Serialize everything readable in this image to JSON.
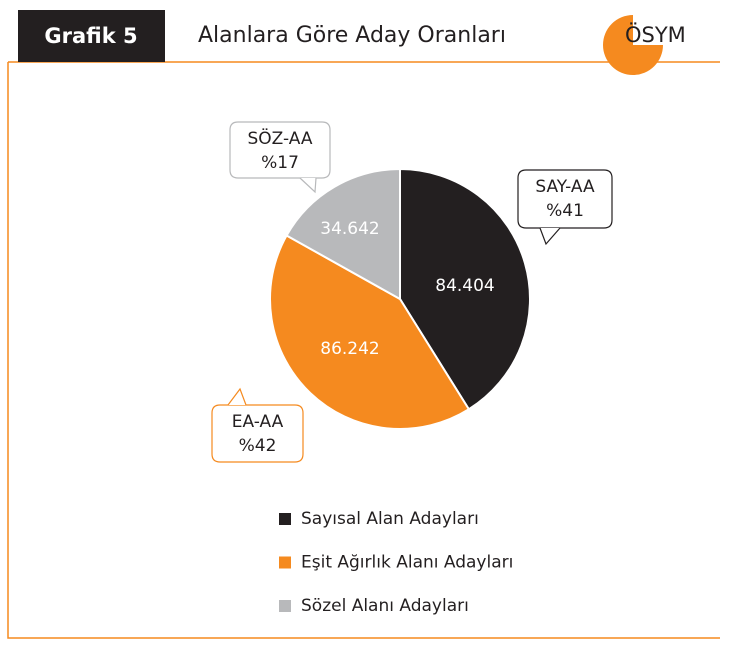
{
  "header": {
    "tag": "Grafik 5",
    "title": "Alanlara Göre Aday Oranları",
    "logo": "ÖSYM"
  },
  "chart_data": {
    "type": "pie",
    "values": [
      84404,
      86242,
      34642
    ],
    "value_labels": [
      "84.404",
      "86.242",
      "34.642"
    ],
    "categories": [
      "SAY-AA",
      "EA-AA",
      "SÖZ-AA"
    ],
    "percent_labels": [
      "%41",
      "%42",
      "%17"
    ],
    "legend_labels": [
      "Sayısal Alan Adayları",
      "Eşit Ağırlık Alanı Adayları",
      "Sözel Alanı Adayları"
    ],
    "colors": [
      "#231f20",
      "#f58a1f",
      "#b8b9bb"
    ]
  }
}
